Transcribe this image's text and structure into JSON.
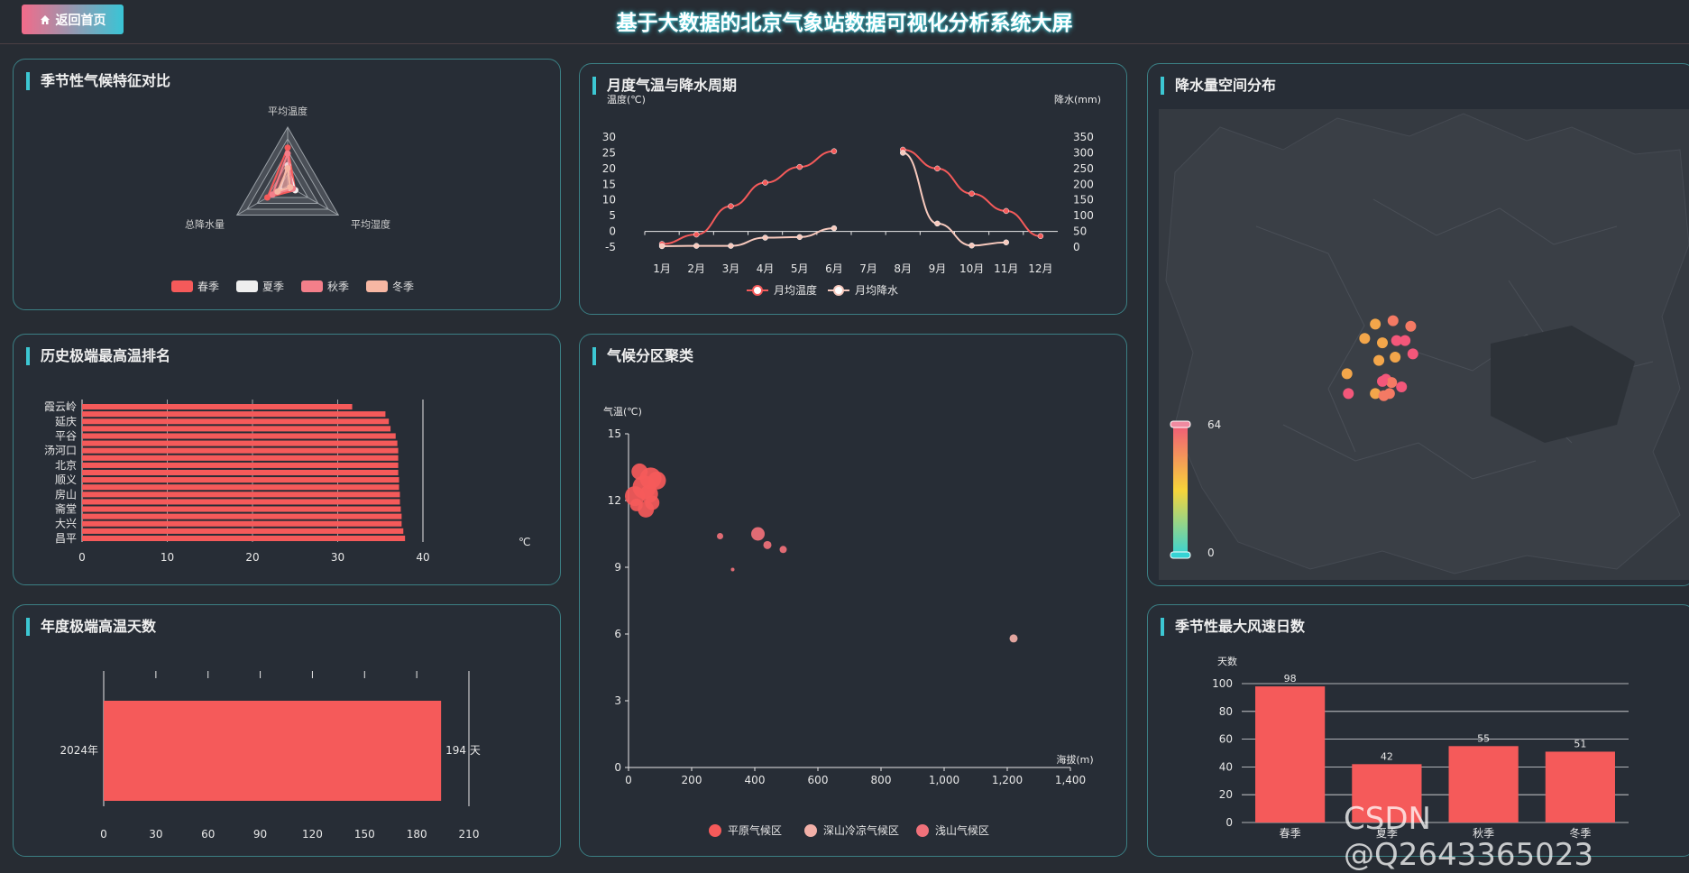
{
  "header": {
    "home_label": "返回首页",
    "title": "基于大数据的北京气象站数据可视化分析系统大屏"
  },
  "watermark": "CSDN @Q2643365023",
  "colors": {
    "accent": "#3cc7d3",
    "bar": "#f55a5a",
    "spring": "#f55a5a",
    "summer": "#eeeeee",
    "autumn": "#f37f8a",
    "winter": "#f7b7a3"
  },
  "panels": {
    "radar": {
      "title": "季节性气候特征对比",
      "chart_data": {
        "type": "radar",
        "indicators": [
          "平均温度",
          "总降水量",
          "平均湿度"
        ],
        "legend": [
          "春季",
          "夏季",
          "秋季",
          "冬季"
        ],
        "series": [
          {
            "name": "春季",
            "values": [
              0.65,
              0.15,
              0.4
            ]
          },
          {
            "name": "夏季",
            "values": [
              0.35,
              0.15,
              0.15
            ]
          },
          {
            "name": "秋季",
            "values": [
              0.55,
              0.1,
              0.3
            ]
          },
          {
            "name": "冬季",
            "values": [
              0.3,
              0.05,
              0.2
            ]
          }
        ]
      }
    },
    "monthly": {
      "title": "月度气温与降水周期",
      "chart_data": {
        "type": "line",
        "categories": [
          "1月",
          "2月",
          "3月",
          "4月",
          "5月",
          "6月",
          "7月",
          "8月",
          "9月",
          "10月",
          "11月",
          "12月"
        ],
        "ylabel_left": "温度(℃)",
        "ylabel_right": "降水(mm)",
        "ylim_left": [
          -5,
          30
        ],
        "ylim_right": [
          0,
          350
        ],
        "left_ticks": [
          -5,
          0,
          5,
          10,
          15,
          20,
          25,
          30
        ],
        "right_ticks": [
          0,
          50,
          100,
          150,
          200,
          250,
          300,
          350
        ],
        "legend": [
          "月均温度",
          "月均降水"
        ],
        "series": [
          {
            "name": "月均温度",
            "axis": "left",
            "values": [
              -4,
              -1,
              8,
              15.5,
              20.5,
              25.5,
              null,
              26,
              20,
              12,
              6.5,
              -1.5
            ]
          },
          {
            "name": "月均降水",
            "axis": "right",
            "values": [
              3,
              4,
              4,
              30,
              32,
              60,
              null,
              300,
              75,
              5,
              15,
              null
            ]
          }
        ]
      }
    },
    "map": {
      "title": "降水量空间分布",
      "visual_map": {
        "max": "64",
        "min": "0"
      },
      "points": [
        {
          "lon": 116.2,
          "lat": 40.45,
          "value": 30
        },
        {
          "lon": 116.45,
          "lat": 40.48,
          "value": 40
        },
        {
          "lon": 116.7,
          "lat": 40.43,
          "value": 35
        },
        {
          "lon": 116.05,
          "lat": 40.32,
          "value": 28
        },
        {
          "lon": 116.3,
          "lat": 40.28,
          "value": 25
        },
        {
          "lon": 116.5,
          "lat": 40.3,
          "value": 55
        },
        {
          "lon": 116.62,
          "lat": 40.3,
          "value": 45
        },
        {
          "lon": 116.25,
          "lat": 40.12,
          "value": 30
        },
        {
          "lon": 116.48,
          "lat": 40.15,
          "value": 32
        },
        {
          "lon": 116.73,
          "lat": 40.18,
          "value": 50
        },
        {
          "lon": 115.8,
          "lat": 40.0,
          "value": 30
        },
        {
          "lon": 116.35,
          "lat": 39.95,
          "value": 45
        },
        {
          "lon": 116.43,
          "lat": 39.92,
          "value": 38
        },
        {
          "lon": 116.3,
          "lat": 39.93,
          "value": 60
        },
        {
          "lon": 116.57,
          "lat": 39.88,
          "value": 52
        },
        {
          "lon": 115.82,
          "lat": 39.82,
          "value": 48
        },
        {
          "lon": 116.2,
          "lat": 39.82,
          "value": 30
        },
        {
          "lon": 116.32,
          "lat": 39.8,
          "value": 42
        },
        {
          "lon": 116.4,
          "lat": 39.82,
          "value": 36
        }
      ]
    },
    "extreme_rank": {
      "title": "历史极端最高温排名",
      "chart_data": {
        "type": "bar",
        "orientation": "horizontal",
        "unit": "℃",
        "xlim": [
          0,
          40
        ],
        "x_ticks": [
          0,
          10,
          20,
          30,
          40
        ],
        "categories": [
          "霞云岭",
          "",
          "延庆",
          "",
          "平谷",
          "",
          "汤河口",
          "",
          "北京",
          "",
          "顺义",
          "",
          "房山",
          "",
          "斋堂",
          "",
          "大兴",
          "",
          "昌平"
        ],
        "values": [
          31.7,
          35.6,
          36.0,
          36.2,
          36.8,
          37.0,
          37.1,
          37.1,
          37.1,
          37.1,
          37.2,
          37.2,
          37.3,
          37.3,
          37.4,
          37.5,
          37.5,
          37.7,
          37.9
        ]
      }
    },
    "cluster": {
      "title": "气候分区聚类",
      "chart_data": {
        "type": "scatter",
        "xlabel": "海拔(m)",
        "ylabel": "气温(℃)",
        "xlim": [
          0,
          1400
        ],
        "ylim": [
          0,
          15
        ],
        "x_ticks": [
          0,
          200,
          400,
          600,
          800,
          1000,
          1200,
          1400
        ],
        "x_tick_labels": [
          "0",
          "200",
          "400",
          "600",
          "800",
          "1,000",
          "1,200",
          "1,400"
        ],
        "y_ticks": [
          0,
          3,
          6,
          9,
          12,
          15
        ],
        "legend": [
          "平原气候区",
          "深山冷凉气候区",
          "浅山气候区"
        ],
        "series": [
          {
            "name": "平原气候区",
            "points": [
              [
                20,
                12.2,
                22
              ],
              [
                35,
                13.3,
                18
              ],
              [
                50,
                12.6,
                26
              ],
              [
                70,
                13.0,
                24
              ],
              [
                90,
                12.9,
                20
              ],
              [
                55,
                11.6,
                18
              ],
              [
                75,
                11.9,
                16
              ],
              [
                25,
                11.8,
                14
              ],
              [
                65,
                12.3,
                20
              ]
            ]
          },
          {
            "name": "深山冷凉气候区",
            "points": [
              [
                1220,
                5.8,
                9
              ]
            ]
          },
          {
            "name": "浅山气候区",
            "points": [
              [
                290,
                10.4,
                7
              ],
              [
                410,
                10.5,
                15
              ],
              [
                440,
                10.0,
                9
              ],
              [
                490,
                9.8,
                8
              ],
              [
                330,
                8.9,
                4
              ]
            ]
          }
        ]
      }
    },
    "annual": {
      "title": "年度极端高温天数",
      "chart_data": {
        "type": "bar",
        "orientation": "horizontal",
        "categories": [
          "2024年"
        ],
        "values": [
          194
        ],
        "value_label": "194 天",
        "xlim": [
          0,
          210
        ],
        "x_ticks": [
          0,
          30,
          60,
          90,
          120,
          150,
          180,
          210
        ]
      }
    },
    "wind": {
      "title": "季节性最大风速日数",
      "chart_data": {
        "type": "bar",
        "ylabel": "天数",
        "categories": [
          "春季",
          "夏季",
          "秋季",
          "冬季"
        ],
        "values": [
          98,
          42,
          55,
          51
        ],
        "ylim": [
          0,
          100
        ],
        "y_ticks": [
          0,
          20,
          40,
          60,
          80,
          100
        ]
      }
    }
  }
}
